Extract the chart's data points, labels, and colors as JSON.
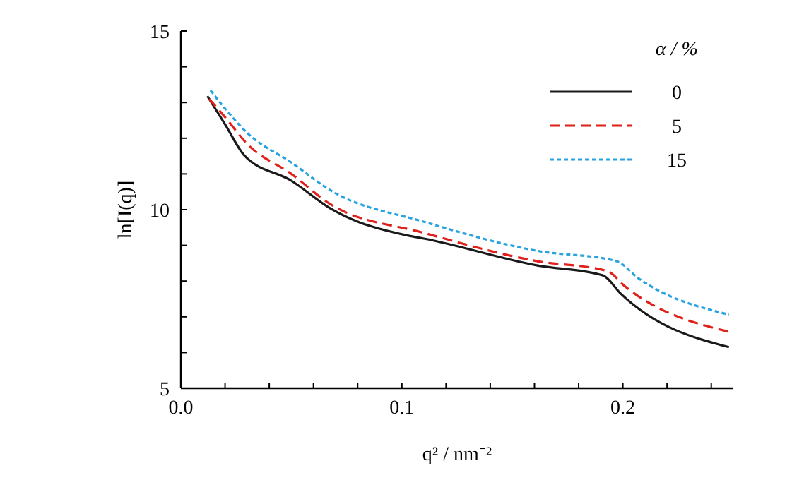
{
  "chart_data": {
    "type": "line",
    "xlabel": "q² / nm⁻²",
    "ylabel": "ln[I(q)]",
    "legend_title": "α / %",
    "legend": "top right",
    "grid": false,
    "xlim": [
      0,
      0.25
    ],
    "ylim": [
      5,
      15
    ],
    "xticks": [
      {
        "value": 0,
        "label": "0.0"
      },
      {
        "value": 0.02,
        "label": null
      },
      {
        "value": 0.04,
        "label": null
      },
      {
        "value": 0.06,
        "label": null
      },
      {
        "value": 0.08,
        "label": null
      },
      {
        "value": 0.1,
        "label": "0.1"
      },
      {
        "value": 0.12,
        "label": null
      },
      {
        "value": 0.14,
        "label": null
      },
      {
        "value": 0.16,
        "label": null
      },
      {
        "value": 0.18,
        "label": null
      },
      {
        "value": 0.2,
        "label": "0.2"
      },
      {
        "value": 0.22,
        "label": null
      },
      {
        "value": 0.24,
        "label": null
      }
    ],
    "yticks": [
      5,
      {
        "value": 6,
        "label": null
      },
      {
        "value": 7,
        "label": null
      },
      {
        "value": 8,
        "label": null
      },
      {
        "value": 9,
        "label": null
      },
      10,
      {
        "value": 11,
        "label": null
      },
      {
        "value": 12,
        "label": null
      },
      {
        "value": 13,
        "label": null
      },
      {
        "value": 14,
        "label": null
      },
      15
    ],
    "series": [
      {
        "name": "0",
        "color": "#1a1a1a",
        "line_style": "solid",
        "x": [
          0.012,
          0.02,
          0.0287,
          0.05,
          0.068,
          0.103,
          0.11,
          0.161,
          0.191,
          0.199,
          0.248
        ],
        "values": [
          13.18,
          12.39,
          11.52,
          10.81,
          10.02,
          9.27,
          9.19,
          8.44,
          8.16,
          7.65,
          6.15
        ]
      },
      {
        "name": "5",
        "color": "#e0201b",
        "line_style": "dashed",
        "x": [
          0.0128,
          0.02,
          0.03,
          0.05,
          0.068,
          0.11,
          0.161,
          0.193,
          0.201,
          0.248
        ],
        "values": [
          13.1,
          12.59,
          11.84,
          11.0,
          10.14,
          9.35,
          8.56,
          8.28,
          7.85,
          6.58
        ]
      },
      {
        "name": "15",
        "color": "#29a3e0",
        "line_style": "dotted",
        "x": [
          0.0134,
          0.02,
          0.03,
          0.05,
          0.068,
          0.11,
          0.161,
          0.197,
          0.207,
          0.248
        ],
        "values": [
          13.34,
          12.83,
          12.15,
          11.32,
          10.53,
          9.66,
          8.85,
          8.56,
          8.08,
          7.06
        ]
      }
    ]
  }
}
